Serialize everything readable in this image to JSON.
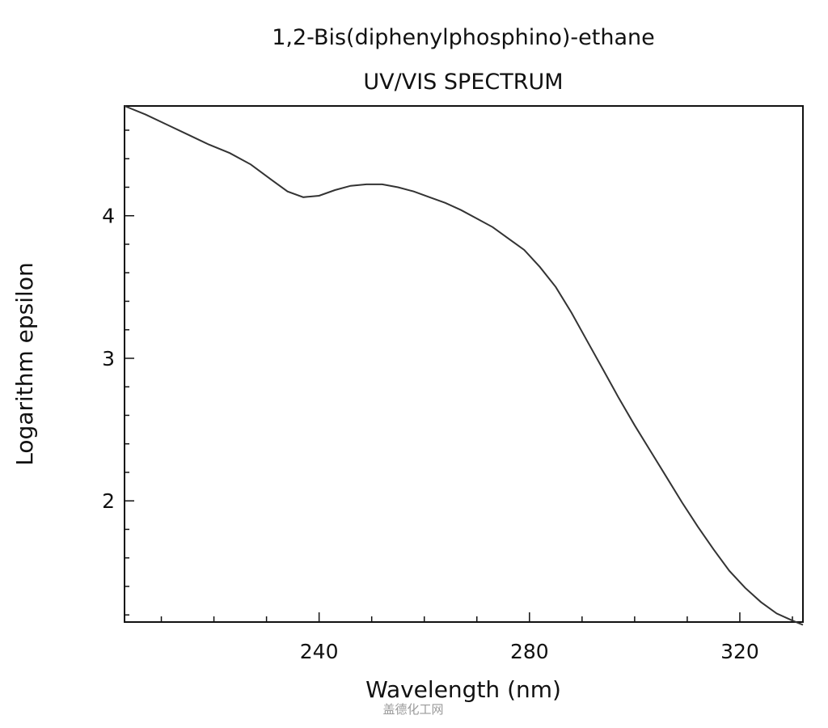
{
  "chart_data": {
    "type": "line",
    "title": "1,2-Bis(diphenylphosphino)-ethane",
    "subtitle": "UV/VIS SPECTRUM",
    "xlabel": "Wavelength (nm)",
    "ylabel": "Logarithm epsilon",
    "xlim": [
      203,
      332
    ],
    "ylim": [
      1.15,
      4.77
    ],
    "x_ticks": [
      240,
      280,
      320
    ],
    "y_ticks": [
      2,
      3,
      4
    ],
    "x_minor_step": 10,
    "y_minor_step": 0.2,
    "grid": false,
    "legend": "none",
    "line_color": "#333333",
    "series": [
      {
        "x": [
          203,
          207,
          211,
          215,
          219,
          223,
          227,
          231,
          234,
          237,
          240,
          243,
          246,
          249,
          252,
          255,
          258,
          261,
          264,
          267,
          270,
          273,
          276,
          279,
          282,
          285,
          288,
          291,
          294,
          297,
          300,
          303,
          306,
          309,
          312,
          315,
          318,
          321,
          324,
          327,
          330,
          332
        ],
        "y": [
          4.77,
          4.71,
          4.64,
          4.57,
          4.5,
          4.44,
          4.36,
          4.25,
          4.17,
          4.13,
          4.14,
          4.18,
          4.21,
          4.22,
          4.22,
          4.2,
          4.17,
          4.13,
          4.09,
          4.04,
          3.98,
          3.92,
          3.84,
          3.76,
          3.64,
          3.5,
          3.32,
          3.12,
          2.92,
          2.72,
          2.53,
          2.35,
          2.17,
          1.99,
          1.82,
          1.66,
          1.51,
          1.39,
          1.29,
          1.21,
          1.16,
          1.13
        ]
      }
    ]
  },
  "watermark": "盖德化工网"
}
